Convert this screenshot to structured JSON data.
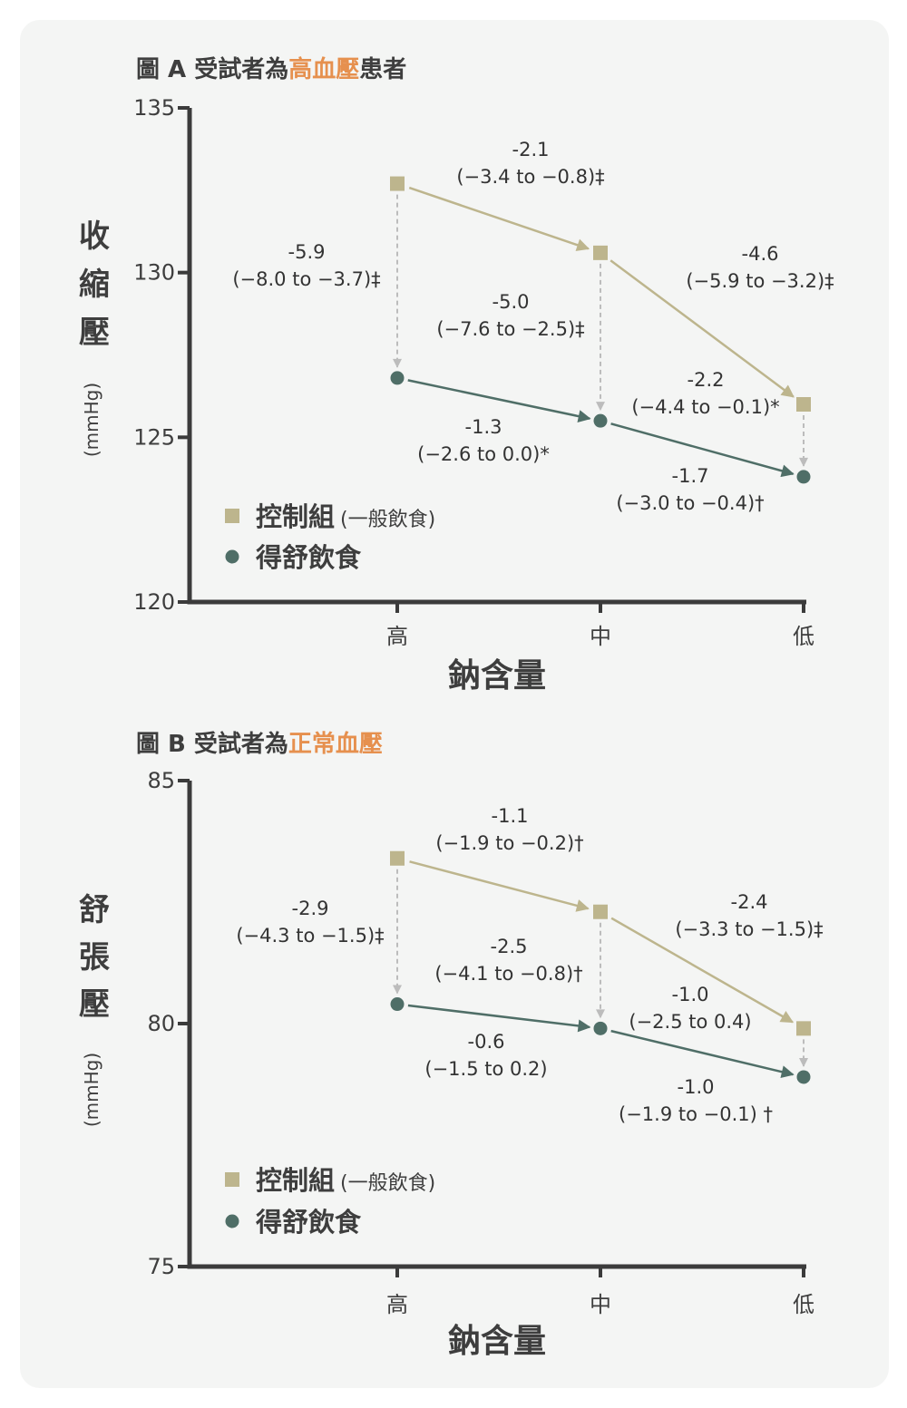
{
  "colors": {
    "control": "#bdb58d",
    "dash": "#4f6e67",
    "axis": "#3b3b3b",
    "vertical": "#bcbcbc",
    "highlight": "#e6904e",
    "text": "#3e3e3e"
  },
  "legend": {
    "control": "控制組",
    "control_note": "(一般飲食)",
    "dash": "得舒飲食"
  },
  "chart_data": [
    {
      "type": "line",
      "title_prefix": "圖 A  受試者為",
      "title_highlight": "高血壓",
      "title_suffix": "患者",
      "ylabel": "收縮壓",
      "yunit": "(mmHg)",
      "xlabel": "鈉含量",
      "categories": [
        "高",
        "中",
        "低"
      ],
      "ylim": [
        120,
        135
      ],
      "yticks": [
        120,
        125,
        130,
        135
      ],
      "series": [
        {
          "name": "控制組",
          "values": [
            132.7,
            130.6,
            126.0
          ]
        },
        {
          "name": "得舒飲食",
          "values": [
            126.8,
            125.5,
            123.8
          ]
        }
      ],
      "annotations": [
        {
          "id": "ctl-hm",
          "lines": [
            "-2.1",
            "(−3.4 to −0.8)‡"
          ]
        },
        {
          "id": "ctl-ml",
          "lines": [
            "-4.6",
            "(−5.9 to −3.2)‡"
          ]
        },
        {
          "id": "v-h",
          "lines": [
            "-5.9",
            "(−8.0 to −3.7)‡"
          ]
        },
        {
          "id": "v-m",
          "lines": [
            "-5.0",
            "(−7.6 to −2.5)‡"
          ]
        },
        {
          "id": "v-l",
          "lines": [
            "-2.2",
            "(−4.4 to −0.1)*"
          ]
        },
        {
          "id": "dash-hm",
          "lines": [
            "-1.3",
            "(−2.6 to 0.0)*"
          ]
        },
        {
          "id": "dash-ml",
          "lines": [
            "-1.7",
            "(−3.0 to −0.4)†"
          ]
        }
      ]
    },
    {
      "type": "line",
      "title_prefix": "圖 B  受試者為",
      "title_highlight": "正常血壓",
      "title_suffix": "",
      "ylabel": "舒張壓",
      "yunit": "(mmHg)",
      "xlabel": "鈉含量",
      "categories": [
        "高",
        "中",
        "低"
      ],
      "ylim": [
        75,
        85
      ],
      "yticks": [
        75,
        80,
        85
      ],
      "series": [
        {
          "name": "控制組",
          "values": [
            83.4,
            82.3,
            79.9
          ]
        },
        {
          "name": "得舒飲食",
          "values": [
            80.4,
            79.9,
            78.9
          ]
        }
      ],
      "annotations": [
        {
          "id": "ctl-hm",
          "lines": [
            "-1.1",
            "(−1.9 to −0.2)†"
          ]
        },
        {
          "id": "ctl-ml",
          "lines": [
            "-2.4",
            "(−3.3 to −1.5)‡"
          ]
        },
        {
          "id": "v-h",
          "lines": [
            "-2.9",
            "(−4.3 to −1.5)‡"
          ]
        },
        {
          "id": "v-m",
          "lines": [
            "-2.5",
            "(−4.1 to −0.8)†"
          ]
        },
        {
          "id": "v-l",
          "lines": [
            "-1.0",
            "(−2.5 to 0.4)"
          ]
        },
        {
          "id": "dash-hm",
          "lines": [
            "-0.6",
            "(−1.5 to 0.2)"
          ]
        },
        {
          "id": "dash-ml",
          "lines": [
            "-1.0",
            "(−1.9 to −0.1) †"
          ]
        }
      ]
    }
  ]
}
